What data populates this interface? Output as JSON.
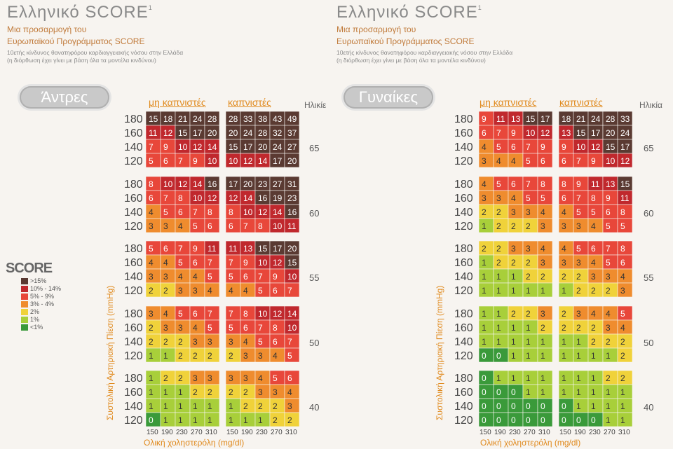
{
  "left": {
    "title": "Ελληνικό SCORE",
    "title_sup": "1",
    "subtitle1": "Μια προσαρμογή του",
    "subtitle2": "Ευρωπαϊκού Προγράμματος SCORE",
    "desc1": "10ετής κίνδυνος θανατηφόρου καρδιαγγειακής νόσου στην Ελλάδα",
    "desc2": "(η διόρθωση έχει γίνει με βάση όλα τα μοντέλα κινδύνου)",
    "sex": "Άντρες",
    "col_nonsmoker": "μη καπνιστές",
    "col_smoker": "καπνιστές",
    "age_header": "Ηλικίε"
  },
  "right": {
    "title": "Ελληνικό SCORE",
    "title_sup": "1",
    "subtitle1": "Μια προσαρμογή του",
    "subtitle2": "Ευρωπαϊκού Προγράμματος SCORE",
    "desc1": "10ετής κίνδυνος θανατηφόρου καρδιαγγειακής νόσου στην Ελλάδα",
    "desc2": "(η διόρθωση έχει γίνει με βάση όλα τα μοντέλα κινδύνου)",
    "sex": "Γυναίκες",
    "col_nonsmoker": "μη καπνιστές",
    "col_smoker": "καπνιστές",
    "age_header": "Ηλικία"
  },
  "legend": {
    "title": "SCORE",
    "items": [
      {
        "label": ">15%",
        "color": "#5a3a32"
      },
      {
        "label": "10% - 14%",
        "color": "#c0282d"
      },
      {
        "label": "5% - 9%",
        "color": "#e8473a"
      },
      {
        "label": "3% - 4%",
        "color": "#ef8c2e"
      },
      {
        "label": "2%",
        "color": "#f0d23a"
      },
      {
        "label": "1%",
        "color": "#a8cf3a"
      },
      {
        "label": "<1%",
        "color": "#3a9a3a"
      }
    ]
  },
  "y_axis_label": "Συστολική Αρτηριακή Πίεση (mmHg)",
  "x_axis_label": "Ολική χοληστερόλη (mg/dl)",
  "chart_data": {
    "type": "heatmap",
    "cholesterol_ticks": [
      150,
      190,
      230,
      270,
      310
    ],
    "sbp_ticks": [
      180,
      160,
      140,
      120
    ],
    "ages": [
      65,
      60,
      55,
      50,
      40
    ],
    "men": {
      "nonsmoker": [
        [
          [
            15,
            18,
            21,
            24,
            28
          ],
          [
            11,
            12,
            15,
            17,
            20
          ],
          [
            7,
            9,
            10,
            12,
            14
          ],
          [
            5,
            6,
            7,
            9,
            10
          ]
        ],
        [
          [
            8,
            10,
            12,
            14,
            16
          ],
          [
            6,
            7,
            8,
            10,
            12
          ],
          [
            4,
            5,
            6,
            7,
            8
          ],
          [
            3,
            3,
            4,
            5,
            6
          ]
        ],
        [
          [
            5,
            6,
            7,
            9,
            11
          ],
          [
            4,
            4,
            5,
            6,
            7
          ],
          [
            3,
            3,
            4,
            4,
            5
          ],
          [
            2,
            2,
            3,
            3,
            4
          ]
        ],
        [
          [
            3,
            4,
            5,
            6,
            7
          ],
          [
            2,
            3,
            3,
            4,
            5
          ],
          [
            2,
            2,
            2,
            3,
            3
          ],
          [
            1,
            1,
            2,
            2,
            2
          ]
        ],
        [
          [
            1,
            2,
            2,
            3,
            3
          ],
          [
            1,
            1,
            1,
            2,
            2
          ],
          [
            1,
            1,
            1,
            1,
            1
          ],
          [
            0,
            1,
            1,
            1,
            1
          ]
        ]
      ],
      "smoker": [
        [
          [
            28,
            33,
            38,
            43,
            49
          ],
          [
            20,
            24,
            28,
            32,
            37
          ],
          [
            15,
            17,
            20,
            24,
            27
          ],
          [
            10,
            12,
            14,
            17,
            20
          ]
        ],
        [
          [
            17,
            20,
            23,
            27,
            31
          ],
          [
            12,
            14,
            16,
            19,
            23
          ],
          [
            8,
            10,
            12,
            14,
            16
          ],
          [
            6,
            7,
            8,
            10,
            11
          ]
        ],
        [
          [
            11,
            13,
            15,
            17,
            20
          ],
          [
            7,
            9,
            10,
            12,
            15
          ],
          [
            5,
            6,
            7,
            9,
            10
          ],
          [
            4,
            4,
            5,
            6,
            7
          ]
        ],
        [
          [
            7,
            8,
            10,
            12,
            14
          ],
          [
            5,
            6,
            7,
            8,
            10
          ],
          [
            3,
            4,
            5,
            6,
            7
          ],
          [
            2,
            3,
            3,
            4,
            5
          ]
        ],
        [
          [
            3,
            3,
            4,
            5,
            6
          ],
          [
            2,
            2,
            3,
            3,
            4
          ],
          [
            1,
            2,
            2,
            2,
            3
          ],
          [
            1,
            1,
            1,
            2,
            2
          ]
        ]
      ]
    },
    "women": {
      "nonsmoker": [
        [
          [
            9,
            11,
            13,
            15,
            17
          ],
          [
            6,
            7,
            9,
            10,
            12
          ],
          [
            4,
            5,
            6,
            7,
            9
          ],
          [
            3,
            4,
            4,
            5,
            6
          ]
        ],
        [
          [
            4,
            5,
            6,
            7,
            8
          ],
          [
            3,
            3,
            4,
            5,
            5
          ],
          [
            2,
            2,
            3,
            3,
            4
          ],
          [
            1,
            2,
            2,
            2,
            3
          ]
        ],
        [
          [
            2,
            2,
            3,
            3,
            4
          ],
          [
            1,
            2,
            2,
            2,
            3
          ],
          [
            1,
            1,
            1,
            2,
            2
          ],
          [
            1,
            1,
            1,
            1,
            1
          ]
        ],
        [
          [
            1,
            1,
            2,
            2,
            3
          ],
          [
            1,
            1,
            1,
            1,
            2
          ],
          [
            1,
            1,
            1,
            1,
            1
          ],
          [
            0,
            0,
            1,
            1,
            1
          ]
        ],
        [
          [
            0,
            1,
            1,
            1,
            1
          ],
          [
            0,
            0,
            0,
            1,
            1
          ],
          [
            0,
            0,
            0,
            0,
            0
          ],
          [
            0,
            0,
            0,
            0,
            0
          ]
        ]
      ],
      "smoker": [
        [
          [
            18,
            21,
            24,
            28,
            33
          ],
          [
            13,
            15,
            17,
            20,
            24
          ],
          [
            9,
            10,
            12,
            15,
            17
          ],
          [
            6,
            7,
            9,
            10,
            12
          ]
        ],
        [
          [
            8,
            9,
            11,
            13,
            15
          ],
          [
            6,
            7,
            8,
            9,
            11
          ],
          [
            4,
            5,
            5,
            6,
            8
          ],
          [
            3,
            3,
            4,
            5,
            5
          ]
        ],
        [
          [
            4,
            5,
            6,
            7,
            8
          ],
          [
            3,
            3,
            4,
            5,
            6
          ],
          [
            2,
            2,
            3,
            3,
            4
          ],
          [
            1,
            2,
            2,
            2,
            3
          ]
        ],
        [
          [
            2,
            3,
            4,
            4,
            5
          ],
          [
            2,
            2,
            2,
            3,
            4
          ],
          [
            1,
            1,
            2,
            2,
            2
          ],
          [
            1,
            1,
            1,
            1,
            2
          ]
        ],
        [
          [
            1,
            1,
            1,
            2,
            2
          ],
          [
            1,
            1,
            1,
            1,
            1
          ],
          [
            0,
            1,
            1,
            1,
            1
          ],
          [
            0,
            0,
            0,
            1,
            1
          ]
        ]
      ]
    }
  }
}
